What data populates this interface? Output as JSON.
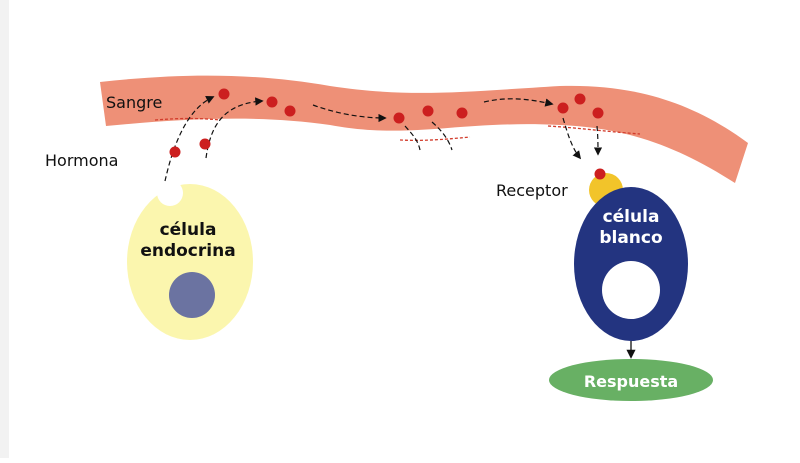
{
  "labels": {
    "blood": "Sangre",
    "hormone": "Hormona",
    "receptor": "Receptor",
    "endocrine_cell_line1": "célula",
    "endocrine_cell_line2": "endocrina",
    "target_cell_line1": "célula",
    "target_cell_line2": "blanco",
    "response": "Respuesta"
  },
  "colors": {
    "blood_vessel": "#ee9077",
    "vessel_edge": "#d23c2c",
    "hormone": "#cc1f1f",
    "endocrine_cell": "#fbf6ae",
    "endocrine_nucleus": "#6b73a1",
    "target_cell": "#233480",
    "receptor": "#f2c42a",
    "response": "#68b064",
    "arrow": "#111111"
  },
  "icons": {
    "hormone": "red-dot",
    "arrow": "dashed-arrow"
  }
}
